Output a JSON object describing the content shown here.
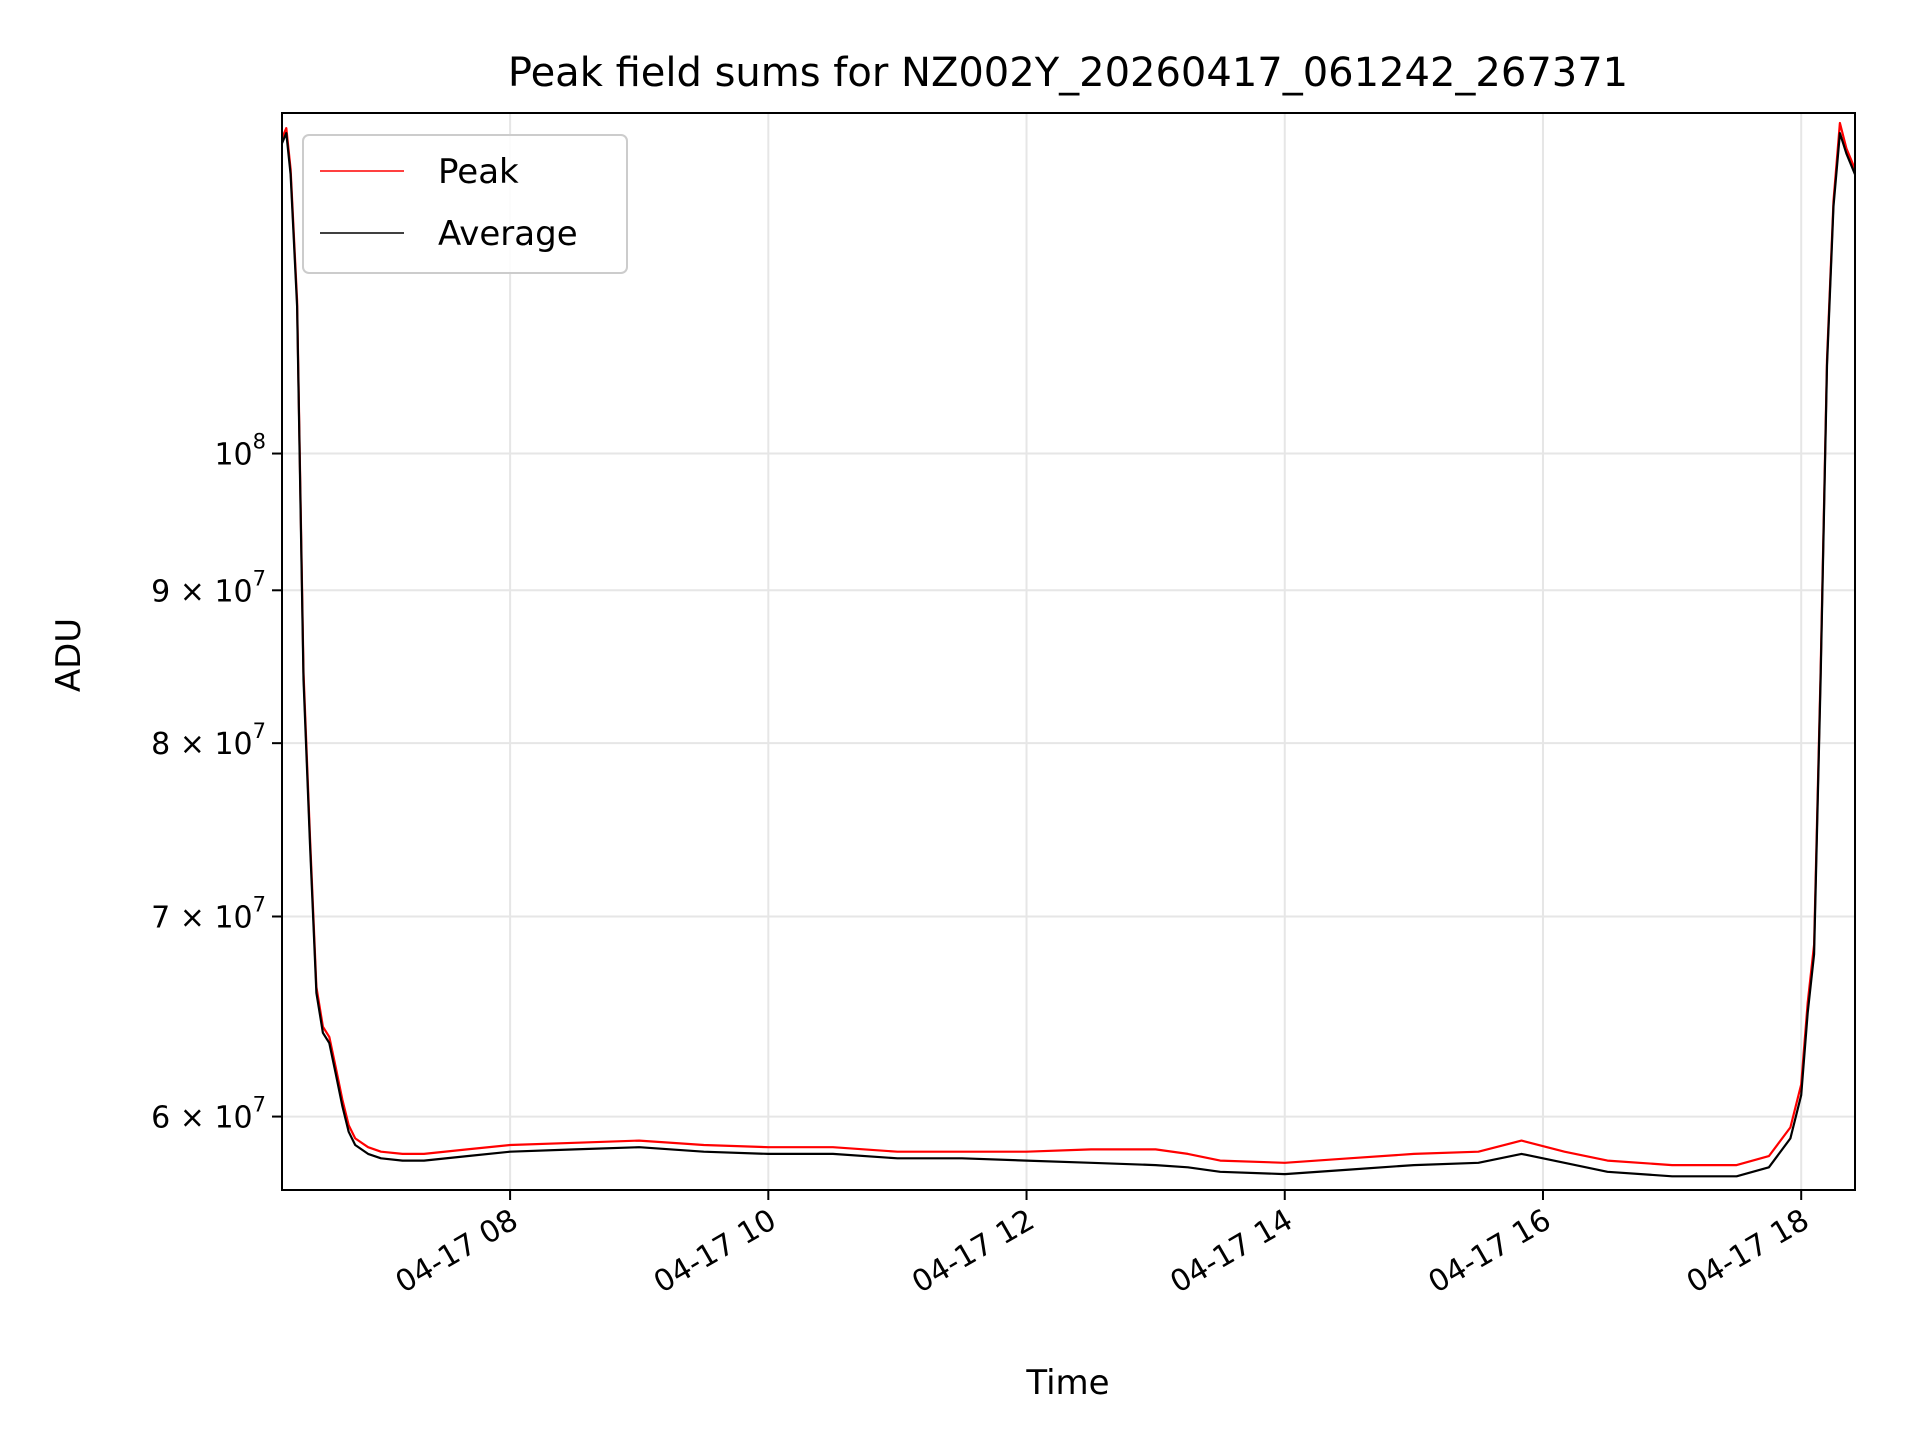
{
  "chart_data": {
    "type": "line",
    "title": "Peak field sums for NZ002Y_20260417_061242_267371",
    "xlabel": "Time",
    "ylabel": "ADU",
    "yscale": "log",
    "xlim": [
      "2026-04-17T06:14",
      "2026-04-17T18:25"
    ],
    "ylim": [
      56700000,
      130000000
    ],
    "grid": true,
    "legend_position": "top-left",
    "x_ticks": [
      {
        "value": "2026-04-17T08:00",
        "label": "04-17 08"
      },
      {
        "value": "2026-04-17T10:00",
        "label": "04-17 10"
      },
      {
        "value": "2026-04-17T12:00",
        "label": "04-17 12"
      },
      {
        "value": "2026-04-17T14:00",
        "label": "04-17 14"
      },
      {
        "value": "2026-04-17T16:00",
        "label": "04-17 16"
      },
      {
        "value": "2026-04-17T18:00",
        "label": "04-17 18"
      }
    ],
    "y_ticks": [
      {
        "value": 60000000,
        "mantissa": "6",
        "base": "10",
        "exp": "7"
      },
      {
        "value": 70000000,
        "mantissa": "7",
        "base": "10",
        "exp": "7"
      },
      {
        "value": 80000000,
        "mantissa": "8",
        "base": "10",
        "exp": "7"
      },
      {
        "value": 90000000,
        "mantissa": "9",
        "base": "10",
        "exp": "7"
      },
      {
        "value": 100000000,
        "mantissa": "",
        "base": "10",
        "exp": "8"
      }
    ],
    "average_series": {
      "name": "Average",
      "color": "#000000",
      "x": [
        "2026-04-17T06:14",
        "2026-04-17T06:16",
        "2026-04-17T06:18",
        "2026-04-17T06:21",
        "2026-04-17T06:24",
        "2026-04-17T06:27",
        "2026-04-17T06:30",
        "2026-04-17T06:33",
        "2026-04-17T06:36",
        "2026-04-17T06:39",
        "2026-04-17T06:42",
        "2026-04-17T06:45",
        "2026-04-17T06:48",
        "2026-04-17T06:54",
        "2026-04-17T07:00",
        "2026-04-17T07:10",
        "2026-04-17T07:20",
        "2026-04-17T07:40",
        "2026-04-17T08:00",
        "2026-04-17T08:30",
        "2026-04-17T09:00",
        "2026-04-17T09:30",
        "2026-04-17T10:00",
        "2026-04-17T10:30",
        "2026-04-17T11:00",
        "2026-04-17T11:30",
        "2026-04-17T12:00",
        "2026-04-17T12:30",
        "2026-04-17T13:00",
        "2026-04-17T13:15",
        "2026-04-17T13:30",
        "2026-04-17T14:00",
        "2026-04-17T14:30",
        "2026-04-17T15:00",
        "2026-04-17T15:30",
        "2026-04-17T15:50",
        "2026-04-17T16:10",
        "2026-04-17T16:30",
        "2026-04-17T17:00",
        "2026-04-17T17:30",
        "2026-04-17T17:45",
        "2026-04-17T17:55",
        "2026-04-17T18:00",
        "2026-04-17T18:03",
        "2026-04-17T18:06",
        "2026-04-17T18:09",
        "2026-04-17T18:12",
        "2026-04-17T18:15",
        "2026-04-17T18:18",
        "2026-04-17T18:21",
        "2026-04-17T18:25"
      ],
      "y": [
        127000000,
        128000000,
        124000000,
        112000000,
        84000000,
        74000000,
        66000000,
        64000000,
        63500000,
        62000000,
        60500000,
        59300000,
        58700000,
        58300000,
        58100000,
        58000000,
        58000000,
        58200000,
        58400000,
        58500000,
        58600000,
        58400000,
        58300000,
        58300000,
        58100000,
        58100000,
        58000000,
        57900000,
        57800000,
        57700000,
        57500000,
        57400000,
        57600000,
        57800000,
        57900000,
        58300000,
        57900000,
        57500000,
        57300000,
        57300000,
        57700000,
        59000000,
        61000000,
        65000000,
        68000000,
        84000000,
        107000000,
        121000000,
        128000000,
        126000000,
        124000000
      ]
    },
    "peak_series": {
      "name": "Peak",
      "color": "#ff0000",
      "x": [
        "2026-04-17T06:14",
        "2026-04-17T06:16",
        "2026-04-17T06:18",
        "2026-04-17T06:21",
        "2026-04-17T06:24",
        "2026-04-17T06:27",
        "2026-04-17T06:30",
        "2026-04-17T06:33",
        "2026-04-17T06:36",
        "2026-04-17T06:39",
        "2026-04-17T06:42",
        "2026-04-17T06:45",
        "2026-04-17T06:48",
        "2026-04-17T06:54",
        "2026-04-17T07:00",
        "2026-04-17T07:10",
        "2026-04-17T07:20",
        "2026-04-17T07:40",
        "2026-04-17T08:00",
        "2026-04-17T08:30",
        "2026-04-17T09:00",
        "2026-04-17T09:30",
        "2026-04-17T10:00",
        "2026-04-17T10:30",
        "2026-04-17T11:00",
        "2026-04-17T11:30",
        "2026-04-17T12:00",
        "2026-04-17T12:30",
        "2026-04-17T13:00",
        "2026-04-17T13:15",
        "2026-04-17T13:30",
        "2026-04-17T14:00",
        "2026-04-17T14:30",
        "2026-04-17T15:00",
        "2026-04-17T15:30",
        "2026-04-17T15:50",
        "2026-04-17T16:10",
        "2026-04-17T16:30",
        "2026-04-17T17:00",
        "2026-04-17T17:30",
        "2026-04-17T17:45",
        "2026-04-17T17:55",
        "2026-04-17T18:00",
        "2026-04-17T18:03",
        "2026-04-17T18:06",
        "2026-04-17T18:09",
        "2026-04-17T18:12",
        "2026-04-17T18:15",
        "2026-04-17T18:18",
        "2026-04-17T18:21",
        "2026-04-17T18:25"
      ],
      "y": [
        127500000,
        128500000,
        124500000,
        112500000,
        84500000,
        74400000,
        66300000,
        64300000,
        63800000,
        62300000,
        60800000,
        59600000,
        59000000,
        58600000,
        58400000,
        58300000,
        58300000,
        58500000,
        58700000,
        58800000,
        58900000,
        58700000,
        58600000,
        58600000,
        58400000,
        58400000,
        58400000,
        58500000,
        58500000,
        58300000,
        58000000,
        57900000,
        58100000,
        58300000,
        58400000,
        58900000,
        58400000,
        58000000,
        57800000,
        57800000,
        58200000,
        59500000,
        61500000,
        65500000,
        68500000,
        84500000,
        107500000,
        121500000,
        129000000,
        126500000,
        124500000
      ]
    },
    "legend_entries": [
      {
        "label": "Peak",
        "color": "#ff0000"
      },
      {
        "label": "Average",
        "color": "#000000"
      }
    ]
  }
}
